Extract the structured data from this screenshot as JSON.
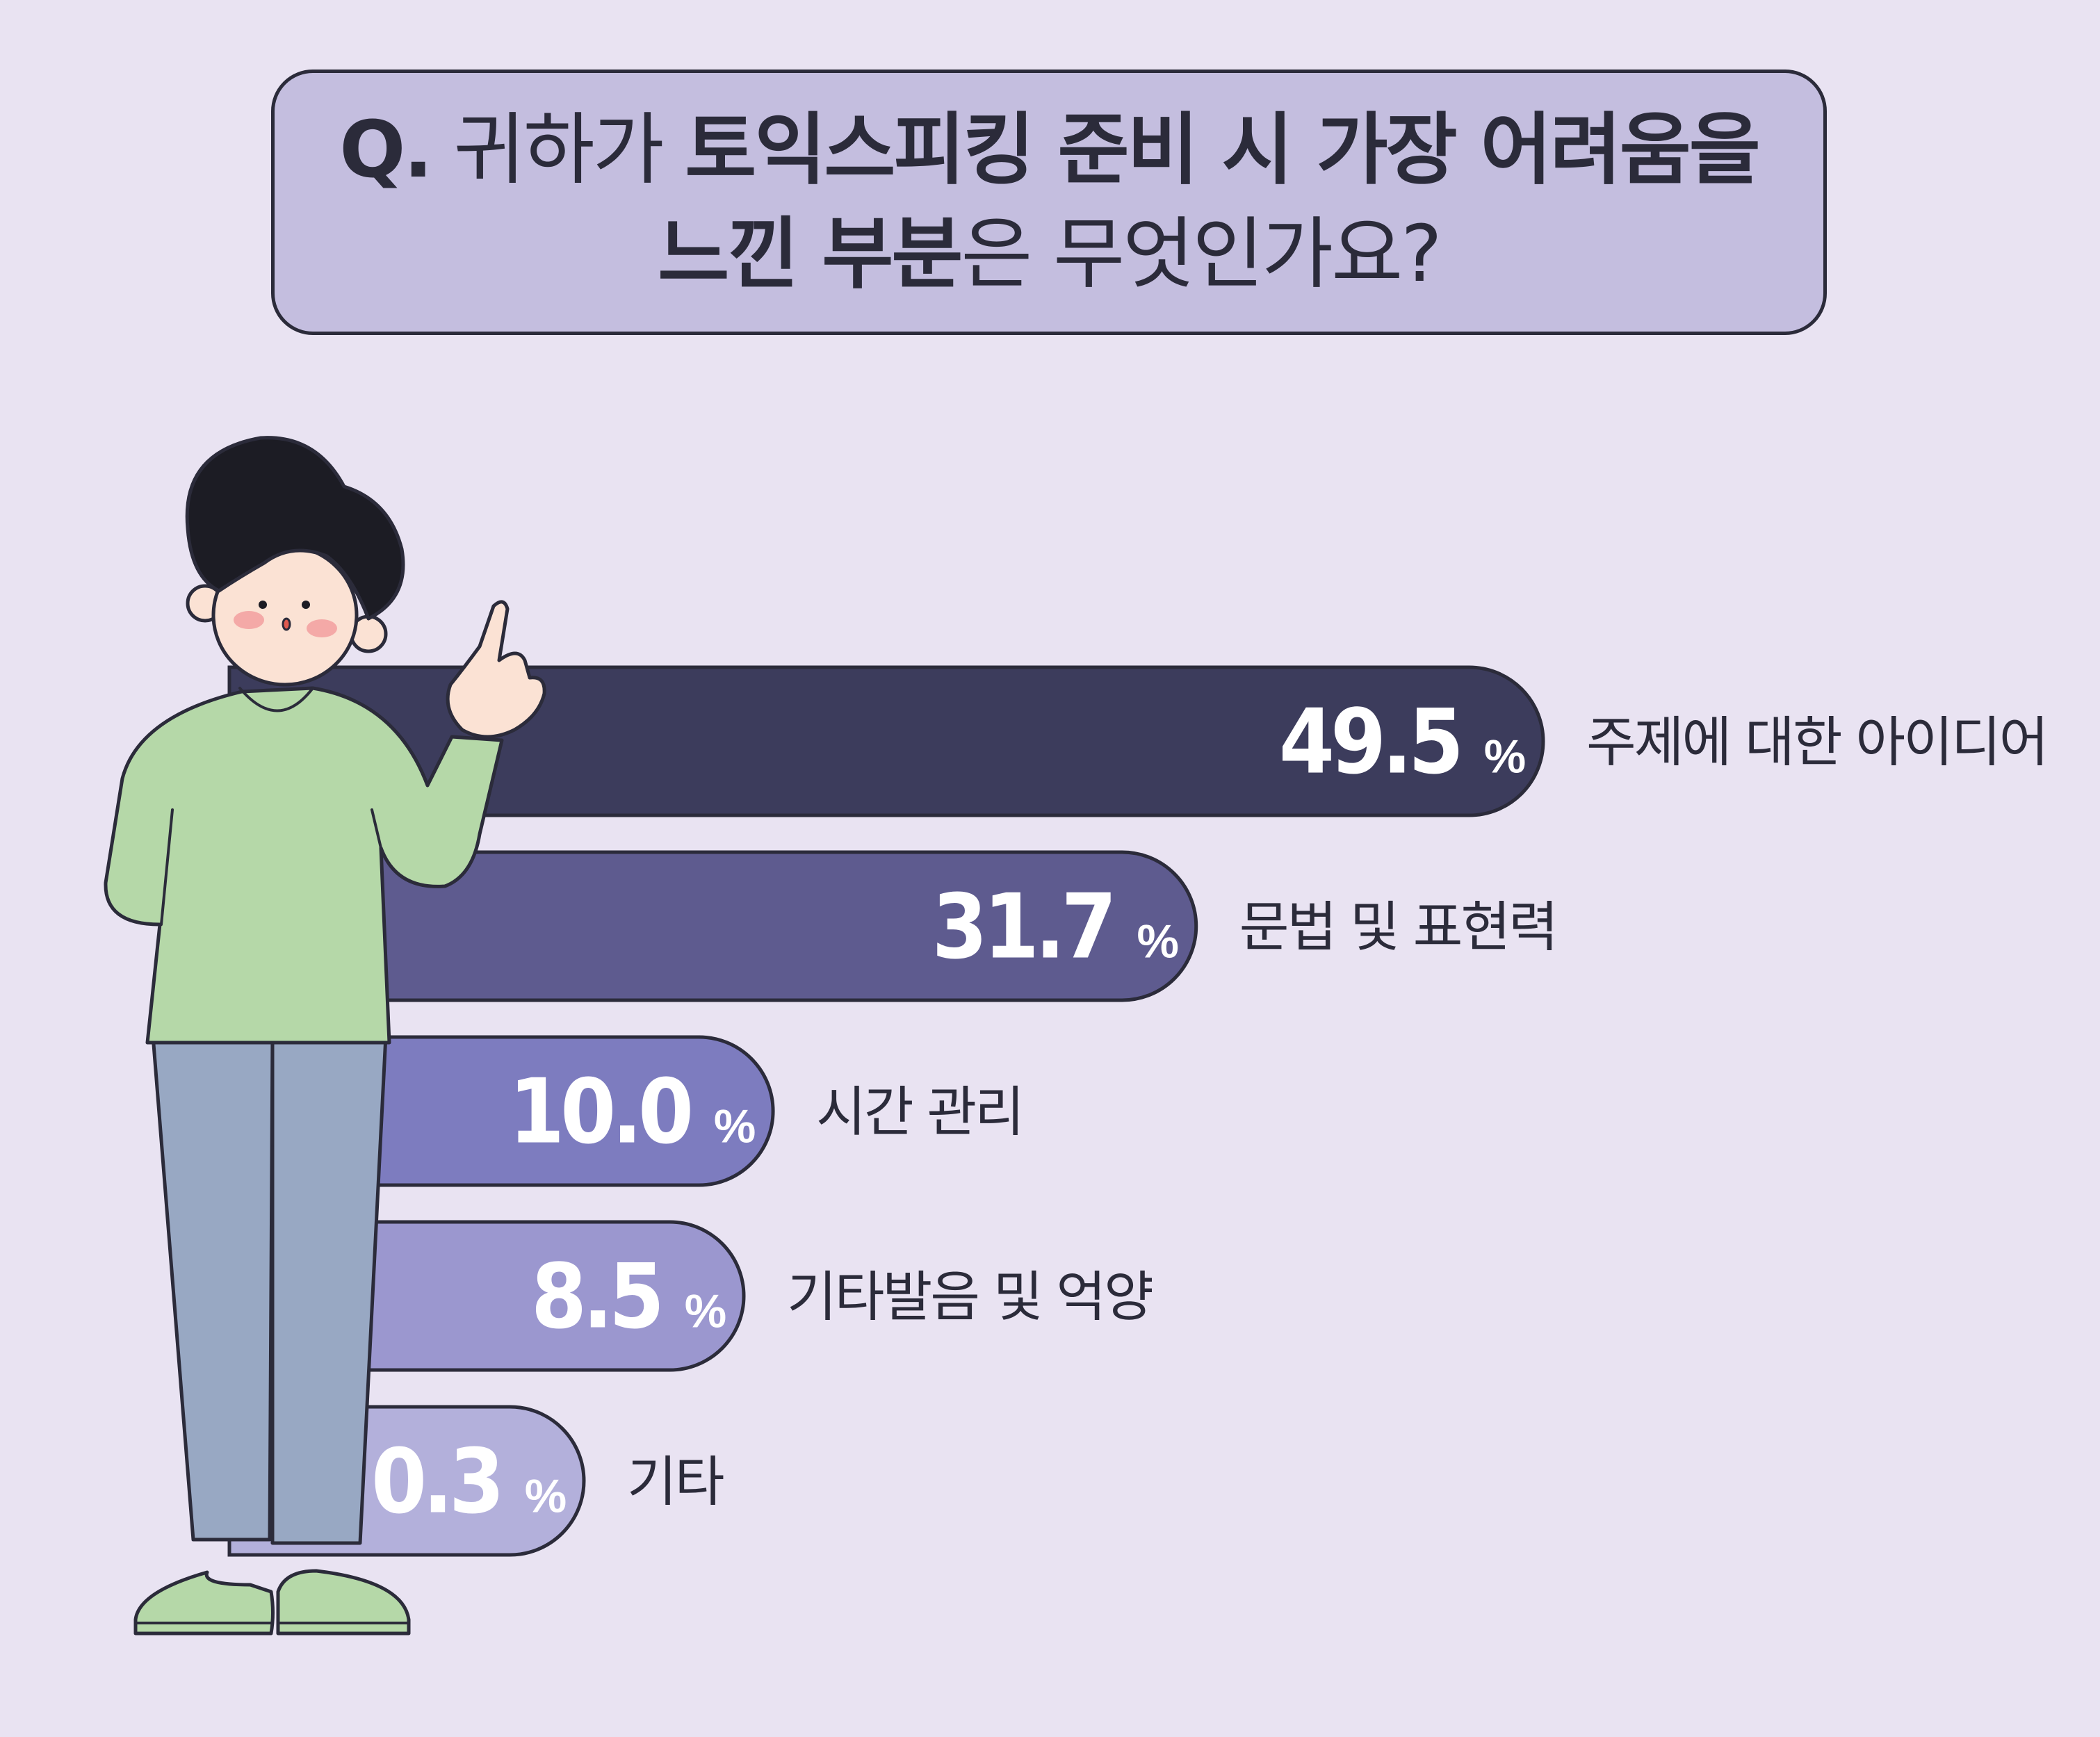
{
  "question": {
    "prefix": "Q.",
    "line1_regular": " 귀하가 ",
    "line1_bold": "토익스피킹 준비 시 가장 어려움을",
    "line2_bold": "느낀 부분",
    "line2_regular": "은 무엇인가요?"
  },
  "chart_data": {
    "type": "bar",
    "orientation": "horizontal",
    "unit": "%",
    "categories": [
      "주제에 대한 아이디어",
      "문법 및 표현력",
      "시간 관리",
      "기타발음 및 억양",
      "기타"
    ],
    "values": [
      49.5,
      31.7,
      10.0,
      8.5,
      0.3
    ],
    "value_labels": [
      "49.5",
      "31.7",
      "10.0",
      "8.5",
      "0.3"
    ],
    "bar_colors": [
      "#3c3c5c",
      "#5e5b8f",
      "#7d7cbf",
      "#9b97cf",
      "#b3b0db"
    ]
  },
  "colors": {
    "background": "#e9e3f2",
    "question_box": "#c4bedf",
    "outline": "#2b2b3a",
    "value_text": "#ffffff"
  }
}
